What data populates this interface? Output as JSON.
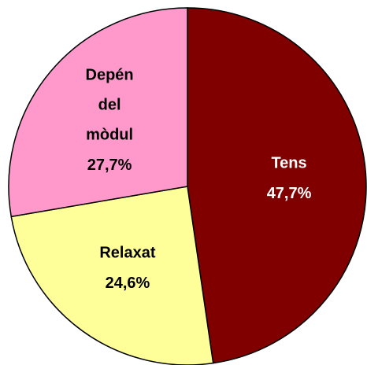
{
  "chart_data": {
    "type": "pie",
    "categories": [
      "Tens",
      "Relaxat",
      "Depén del mòdul"
    ],
    "values": [
      47.7,
      24.6,
      27.7
    ],
    "value_labels": [
      "47,7%",
      "24,6%",
      "27,7%"
    ],
    "colors": [
      "#800000",
      "#ffff99",
      "#ff99cc"
    ],
    "label_colors": [
      "#ffffff",
      "#000000",
      "#000000"
    ]
  }
}
